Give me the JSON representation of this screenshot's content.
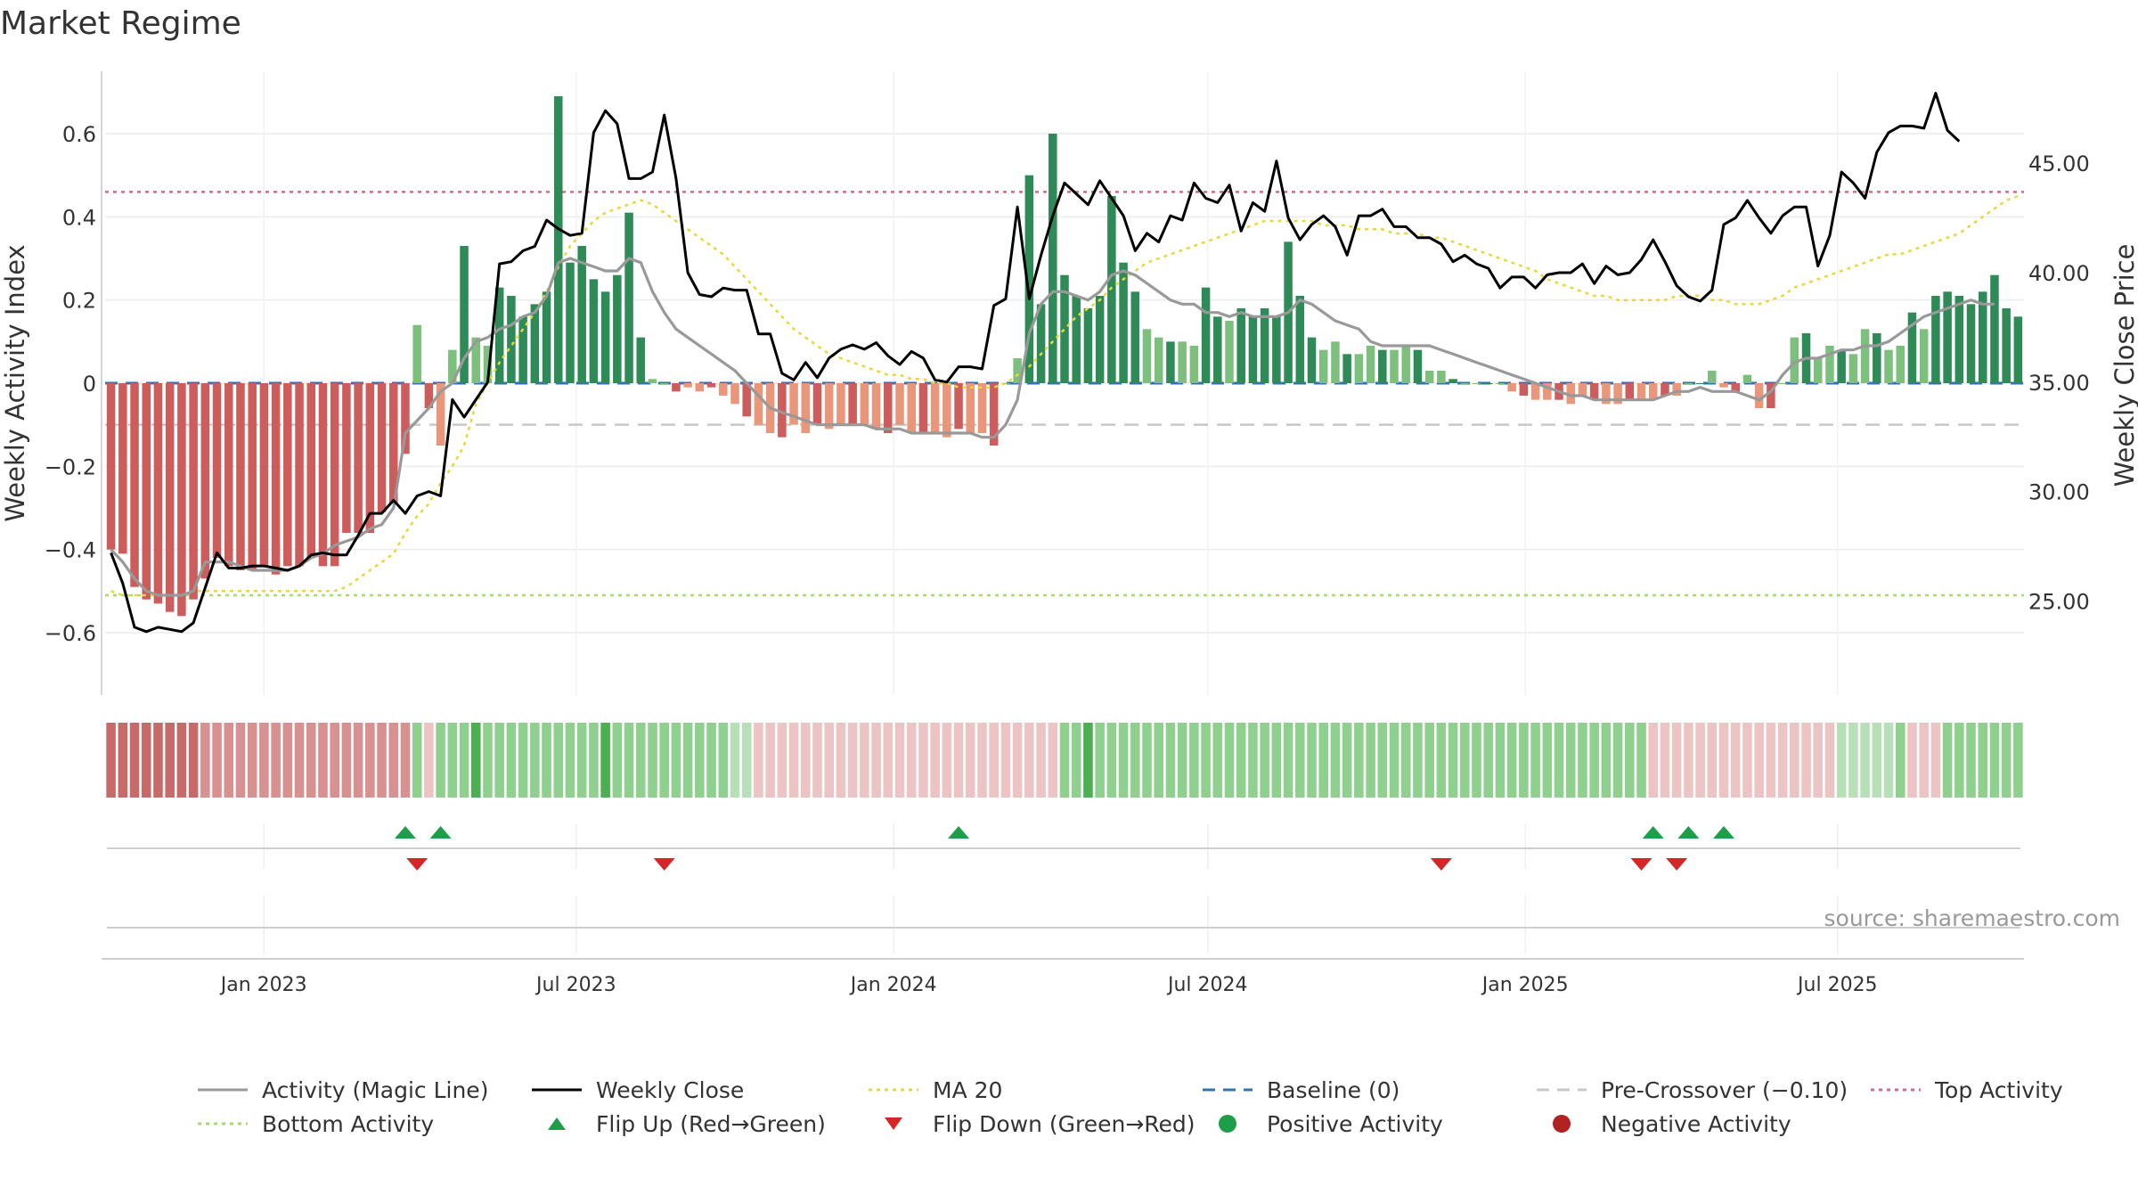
{
  "title": "Market Regime",
  "chart_data": {
    "type": "bar",
    "subtype": "weekly activity histogram with price overlay and regime strip",
    "x_start": "2022-10-01",
    "x_end": "2025-10-17",
    "x_tick_labels": [
      "Jan 2023",
      "Jul 2023",
      "Jan 2024",
      "Jul 2024",
      "Jan 2025",
      "Jul 2025"
    ],
    "x_tick_dates": [
      "2023-01-01",
      "2023-07-01",
      "2024-01-01",
      "2024-07-01",
      "2025-01-01",
      "2025-07-01"
    ],
    "ylabel_left": "Weekly Activity Index",
    "ylabel_right": "Weekly Close Price",
    "ylim_left": [
      -0.75,
      0.75
    ],
    "ylim_right": [
      20.7,
      49.2
    ],
    "yticks_left": [
      0.6,
      0.4,
      0.2,
      0,
      -0.2,
      -0.4,
      -0.6
    ],
    "ytick_labels_left": [
      "0.6",
      "0.4",
      "0.2",
      "0",
      "−0.2",
      "−0.4",
      "−0.6"
    ],
    "yticks_right": [
      45,
      40,
      35,
      30,
      25
    ],
    "ytick_labels_right": [
      "45.00",
      "40.00",
      "35.00",
      "30.00",
      "25.00"
    ],
    "grid": true,
    "reference_lines": {
      "baseline": 0,
      "pre_crossover": -0.1,
      "top_activity": 0.46,
      "bottom_activity": -0.51
    },
    "activity": [
      -0.4,
      -0.41,
      -0.49,
      -0.52,
      -0.53,
      -0.55,
      -0.56,
      -0.52,
      -0.47,
      -0.42,
      -0.44,
      -0.45,
      -0.45,
      -0.44,
      -0.46,
      -0.44,
      -0.44,
      -0.42,
      -0.44,
      -0.44,
      -0.36,
      -0.36,
      -0.36,
      -0.31,
      -0.29,
      -0.17,
      0.14,
      -0.06,
      -0.15,
      0.08,
      0.33,
      0.11,
      0.09,
      0.23,
      0.21,
      0.16,
      0.19,
      0.22,
      0.69,
      0.29,
      0.33,
      0.25,
      0.22,
      0.26,
      0.41,
      0.11,
      0.01,
      0,
      -0.02,
      -0.01,
      -0.02,
      -0.01,
      -0.03,
      -0.05,
      -0.08,
      -0.1,
      -0.12,
      -0.13,
      -0.1,
      -0.12,
      -0.1,
      -0.11,
      -0.1,
      -0.1,
      -0.1,
      -0.11,
      -0.12,
      -0.1,
      -0.12,
      -0.12,
      -0.12,
      -0.13,
      -0.11,
      -0.12,
      -0.12,
      -0.15,
      0,
      0.06,
      0.5,
      0.19,
      0.6,
      0.26,
      0.21,
      0.18,
      0.21,
      0.45,
      0.29,
      0.22,
      0.13,
      0.11,
      0.1,
      0.1,
      0.09,
      0.23,
      0.16,
      0.15,
      0.18,
      0.16,
      0.18,
      0.16,
      0.34,
      0.21,
      0.11,
      0.08,
      0.1,
      0.07,
      0.07,
      0.09,
      0.08,
      0.08,
      0.09,
      0.08,
      0.03,
      0.03,
      0.01,
      0,
      0,
      0,
      0,
      -0.02,
      -0.03,
      -0.04,
      -0.04,
      -0.04,
      -0.05,
      -0.03,
      -0.04,
      -0.05,
      -0.05,
      -0.04,
      -0.04,
      -0.04,
      -0.03,
      -0.03,
      0,
      0,
      0.03,
      -0.01,
      -0.02,
      0.02,
      -0.06,
      -0.06,
      0,
      0.11,
      0.12,
      0.06,
      0.09,
      0.08,
      0.07,
      0.13,
      0.12,
      0.08,
      0.09,
      0.17,
      0.13,
      0.21,
      0.22,
      0.21,
      0.19,
      0.22,
      0.26,
      0.18,
      0.16
    ],
    "magic_line": [
      -0.4,
      -0.43,
      -0.47,
      -0.5,
      -0.51,
      -0.51,
      -0.51,
      -0.5,
      -0.43,
      -0.43,
      -0.43,
      -0.44,
      -0.45,
      -0.45,
      -0.45,
      -0.45,
      -0.44,
      -0.42,
      -0.41,
      -0.39,
      -0.38,
      -0.37,
      -0.35,
      -0.34,
      -0.3,
      -0.12,
      -0.09,
      -0.06,
      -0.02,
      0.0,
      0.06,
      0.1,
      0.11,
      0.13,
      0.14,
      0.16,
      0.17,
      0.21,
      0.29,
      0.3,
      0.29,
      0.28,
      0.27,
      0.27,
      0.3,
      0.29,
      0.22,
      0.17,
      0.13,
      0.11,
      0.09,
      0.07,
      0.05,
      0.03,
      0.0,
      -0.03,
      -0.06,
      -0.07,
      -0.08,
      -0.09,
      -0.1,
      -0.1,
      -0.1,
      -0.1,
      -0.1,
      -0.11,
      -0.11,
      -0.11,
      -0.12,
      -0.12,
      -0.12,
      -0.12,
      -0.12,
      -0.12,
      -0.13,
      -0.13,
      -0.1,
      -0.04,
      0.12,
      0.19,
      0.22,
      0.22,
      0.21,
      0.2,
      0.22,
      0.26,
      0.27,
      0.26,
      0.24,
      0.22,
      0.2,
      0.19,
      0.19,
      0.17,
      0.17,
      0.16,
      0.17,
      0.16,
      0.16,
      0.16,
      0.17,
      0.2,
      0.19,
      0.17,
      0.15,
      0.14,
      0.13,
      0.1,
      0.09,
      0.09,
      0.09,
      0.09,
      0.09,
      0.08,
      0.07,
      0.06,
      0.05,
      0.04,
      0.03,
      0.02,
      0.01,
      0.0,
      -0.01,
      -0.02,
      -0.03,
      -0.03,
      -0.04,
      -0.04,
      -0.04,
      -0.04,
      -0.04,
      -0.04,
      -0.03,
      -0.02,
      -0.02,
      -0.01,
      -0.02,
      -0.02,
      -0.02,
      -0.03,
      -0.04,
      -0.02,
      0.02,
      0.05,
      0.06,
      0.06,
      0.07,
      0.08,
      0.08,
      0.09,
      0.09,
      0.1,
      0.12,
      0.14,
      0.16,
      0.17,
      0.18,
      0.19,
      0.2,
      0.19,
      0.19
    ],
    "ma20": [
      -0.5,
      -0.51,
      -0.51,
      -0.51,
      -0.51,
      -0.51,
      -0.51,
      -0.5,
      -0.5,
      -0.5,
      -0.5,
      -0.5,
      -0.5,
      -0.5,
      -0.5,
      -0.5,
      -0.5,
      -0.5,
      -0.5,
      -0.5,
      -0.49,
      -0.47,
      -0.45,
      -0.43,
      -0.41,
      -0.36,
      -0.32,
      -0.29,
      -0.24,
      -0.2,
      -0.15,
      -0.05,
      0.0,
      0.05,
      0.09,
      0.13,
      0.17,
      0.22,
      0.28,
      0.33,
      0.36,
      0.39,
      0.41,
      0.42,
      0.43,
      0.44,
      0.43,
      0.41,
      0.39,
      0.37,
      0.35,
      0.33,
      0.31,
      0.28,
      0.25,
      0.22,
      0.19,
      0.16,
      0.13,
      0.11,
      0.09,
      0.07,
      0.06,
      0.05,
      0.04,
      0.03,
      0.02,
      0.02,
      0.01,
      0.01,
      0.0,
      0.0,
      -0.01,
      -0.01,
      -0.01,
      -0.01,
      0.0,
      0.02,
      0.04,
      0.07,
      0.1,
      0.13,
      0.16,
      0.18,
      0.2,
      0.23,
      0.25,
      0.27,
      0.29,
      0.3,
      0.31,
      0.32,
      0.33,
      0.34,
      0.35,
      0.36,
      0.37,
      0.38,
      0.39,
      0.39,
      0.39,
      0.39,
      0.39,
      0.38,
      0.38,
      0.38,
      0.37,
      0.37,
      0.37,
      0.36,
      0.36,
      0.36,
      0.35,
      0.35,
      0.34,
      0.33,
      0.32,
      0.31,
      0.3,
      0.29,
      0.28,
      0.27,
      0.25,
      0.24,
      0.23,
      0.22,
      0.21,
      0.21,
      0.2,
      0.2,
      0.2,
      0.2,
      0.2,
      0.21,
      0.21,
      0.21,
      0.2,
      0.2,
      0.19,
      0.19,
      0.19,
      0.2,
      0.21,
      0.23,
      0.24,
      0.25,
      0.26,
      0.27,
      0.28,
      0.29,
      0.3,
      0.31,
      0.31,
      0.32,
      0.33,
      0.34,
      0.35,
      0.36,
      0.38,
      0.4,
      0.42,
      0.44,
      0.45
    ],
    "weekly_close": [
      27.2,
      25.8,
      23.8,
      23.6,
      23.8,
      23.7,
      23.6,
      24.0,
      25.6,
      27.2,
      26.5,
      26.5,
      26.6,
      26.6,
      26.5,
      26.4,
      26.6,
      27.1,
      27.2,
      27.1,
      27.1,
      28.0,
      29.0,
      29.0,
      29.6,
      29.0,
      29.8,
      30.0,
      29.8,
      34.2,
      33.4,
      34.2,
      35.0,
      40.4,
      40.5,
      41.0,
      41.2,
      42.4,
      42.0,
      41.7,
      41.8,
      46.4,
      47.4,
      46.8,
      44.3,
      44.3,
      44.6,
      47.2,
      44.3,
      40.0,
      39.0,
      38.9,
      39.3,
      39.2,
      39.2,
      37.2,
      37.2,
      35.4,
      35.1,
      35.9,
      35.2,
      36.1,
      36.5,
      36.7,
      36.5,
      36.8,
      36.2,
      35.8,
      36.4,
      36.1,
      35.1,
      35.0,
      35.7,
      35.7,
      35.6,
      38.5,
      38.8,
      43.0,
      38.8,
      40.8,
      42.6,
      44.1,
      43.6,
      43.1,
      44.2,
      43.4,
      42.6,
      41.0,
      41.8,
      41.4,
      42.6,
      42.4,
      44.1,
      43.4,
      43.2,
      44.0,
      41.9,
      43.2,
      42.8,
      45.1,
      42.5,
      41.5,
      42.2,
      42.6,
      42.1,
      40.8,
      42.6,
      42.6,
      42.9,
      42.1,
      42.1,
      41.6,
      41.6,
      41.3,
      40.5,
      40.8,
      40.4,
      40.2,
      39.3,
      39.8,
      39.8,
      39.3,
      39.9,
      40.0,
      40.0,
      40.4,
      39.5,
      40.3,
      39.9,
      40.0,
      40.6,
      41.5,
      40.5,
      39.4,
      38.9,
      38.7,
      39.2,
      42.2,
      42.5,
      43.3,
      42.5,
      41.8,
      42.6,
      43.0,
      43.0,
      40.3,
      41.7,
      44.6,
      44.1,
      43.4,
      45.5,
      46.4,
      46.7,
      46.7,
      46.6,
      48.2,
      46.5,
      46.0
    ],
    "flip_up_weeks": [
      25,
      28,
      72,
      131,
      134,
      137
    ],
    "flip_down_weeks": [
      26,
      47,
      113,
      130,
      133
    ],
    "regime_strip": "rrrrrrrrmmmmmmmmmmmmmmmmmmgpgggGggggggggggGggggggggggllppppppppppppppppppppppppppggGgggggggggggggggggggggggggggggggggggggggggggggggpppppppppppppppplllllgpppgggggggggggggggggggggggggggggg",
    "legend": [
      {
        "label": "Activity (Magic Line)",
        "marker": "solid-line",
        "color": "#999999"
      },
      {
        "label": "Weekly Close",
        "marker": "solid-line",
        "color": "#000000"
      },
      {
        "label": "MA 20",
        "marker": "dotted-line",
        "color": "#e8d83a"
      },
      {
        "label": "Baseline (0)",
        "marker": "dashed-line",
        "color": "#2f74b8"
      },
      {
        "label": "Pre-Crossover (−0.10)",
        "marker": "dashed-line",
        "color": "#c8c8c8"
      },
      {
        "label": "Top Activity",
        "marker": "dotted-line",
        "color": "#d46a8a"
      },
      {
        "label": "Bottom Activity",
        "marker": "dotted-line",
        "color": "#a5dd6a"
      },
      {
        "label": "Flip Up (Red→Green)",
        "marker": "triangle-up",
        "color": "#1f9e4a"
      },
      {
        "label": "Flip Down (Green→Red)",
        "marker": "triangle-down",
        "color": "#d62728"
      },
      {
        "label": "Positive Activity",
        "marker": "circle",
        "color": "#1f9e4a"
      },
      {
        "label": "Negative Activity",
        "marker": "circle",
        "color": "#b22222"
      }
    ],
    "colors": {
      "pos_strong": "#2e8b57",
      "pos_weak": "#7dbf7d",
      "neg_strong": "#cd5c5c",
      "neg_weak": "#e9967a",
      "strip_red": "#c96a6a",
      "strip_mid": "#d89090",
      "strip_pink": "#ecc4c4",
      "strip_light": "#b8e0b8",
      "strip_green": "#8fd08f",
      "strip_dark": "#4caf50"
    },
    "annotation": "source: sharemaestro.com"
  }
}
